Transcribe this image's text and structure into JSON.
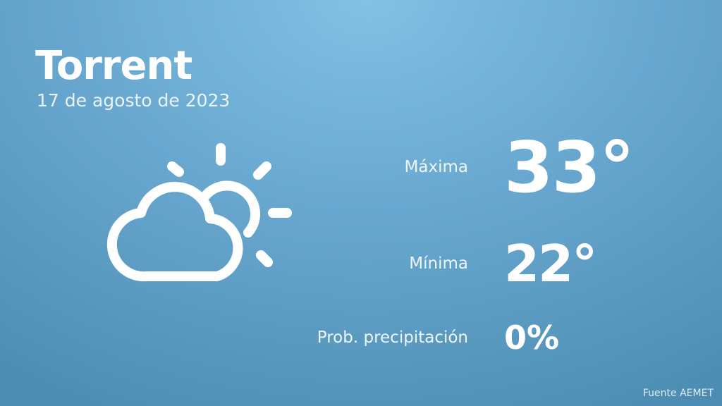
{
  "city": "Torrent",
  "date": "17 de agosto de 2023",
  "icon": "partly-cloudy-icon",
  "rows": [
    {
      "label": "Máxima",
      "value": "33°"
    },
    {
      "label": "Mínima",
      "value": "22°"
    },
    {
      "label": "Prob. precipitación",
      "value": "0%"
    }
  ],
  "source": "Fuente AEMET",
  "colors": {
    "background_top": "#82c1e4",
    "background_bottom": "#4d8db3",
    "text": "#ffffff"
  }
}
